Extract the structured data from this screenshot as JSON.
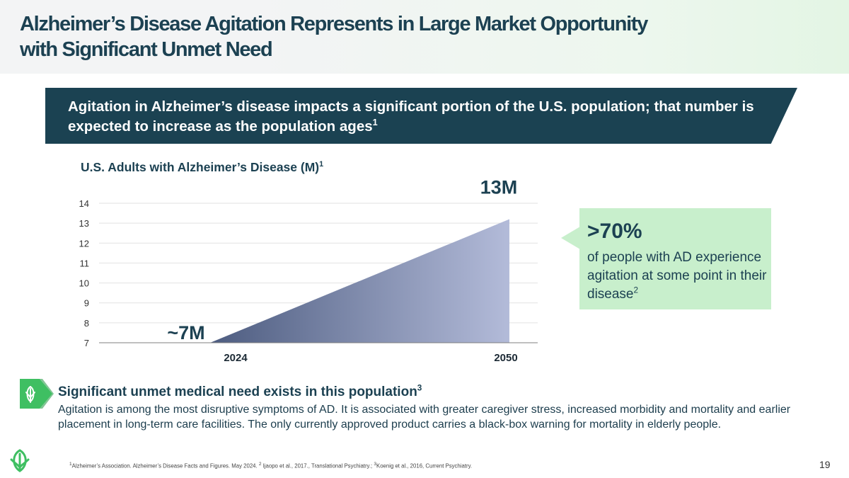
{
  "slide": {
    "title_line1": "Alzheimer’s Disease Agitation Represents in Large Market Opportunity",
    "title_line2": "with Significant Unmet Need",
    "banner_text": "Agitation in Alzheimer’s disease impacts a significant portion of the U.S. population; that number is expected to increase as the population ages",
    "banner_sup": "1",
    "page_number": "19"
  },
  "chart_data": {
    "type": "area",
    "title": "U.S. Adults with Alzheimer’s Disease (M)",
    "title_sup": "1",
    "categories": [
      "2024",
      "2050"
    ],
    "values": [
      7,
      13.2
    ],
    "data_labels": [
      "~7M",
      "13M"
    ],
    "yticks": [
      "7",
      "8",
      "9",
      "10",
      "11",
      "12",
      "13",
      "14"
    ],
    "ylim": [
      7,
      14
    ],
    "xlabel": "",
    "ylabel": "",
    "grid": true,
    "colors": {
      "fill_start": "#4d5c80",
      "fill_end": "#b3bbd9",
      "grid": "#e2e2e2",
      "axis": "#7f7f7f"
    }
  },
  "callout": {
    "percent": ">70%",
    "text": "of people with AD experience agitation at some point in their disease",
    "sup": "2",
    "color": "#c8efcc"
  },
  "unmet_need": {
    "title": "Significant unmet medical need exists in this population",
    "title_sup": "3",
    "body": "Agitation is among the most disruptive symptoms of AD. It is associated with greater caregiver stress, increased morbidity and mortality and earlier placement in long-term care facilities. The only currently approved product carries a black-box warning for mortality in elderly people.",
    "icon": "leaf-logo-icon"
  },
  "footnotes": {
    "s1": "1",
    "t1": "Alzheimer’s Association. Alzheimer’s Disease Facts and Figures. May 2024. ",
    "s2": "2",
    "t2": " Ijaopo et al., 2017., Translational Psychiatry.; ",
    "s3": "3",
    "t3": "Koenig et al., 2016, Current Psychiatry."
  },
  "theme": {
    "navy": "#1b4252",
    "green_accent": "#3fbf62",
    "light_green": "#c8efcc"
  }
}
